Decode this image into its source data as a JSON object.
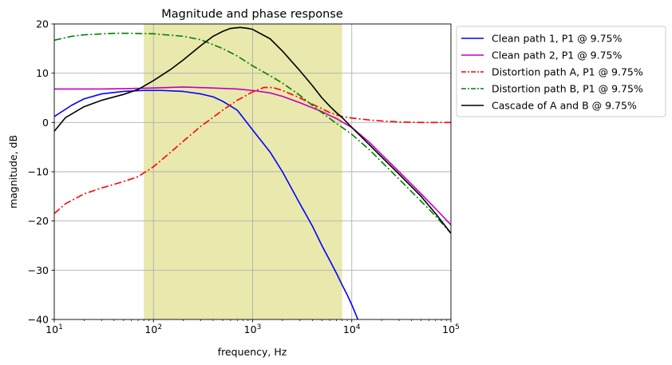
{
  "chart_data": {
    "type": "line",
    "title": "Magnitude and phase response",
    "xlabel": "frequency, Hz",
    "ylabel": "magnitude, dB",
    "xscale": "log",
    "xlim": [
      10,
      100000
    ],
    "ylim": [
      -40,
      20
    ],
    "grid": true,
    "legend_position": "outside-top-right",
    "x_ticks": [
      {
        "value": 10,
        "base": "10",
        "exp": "1"
      },
      {
        "value": 100,
        "base": "10",
        "exp": "2"
      },
      {
        "value": 1000,
        "base": "10",
        "exp": "3"
      },
      {
        "value": 10000,
        "base": "10",
        "exp": "4"
      },
      {
        "value": 100000,
        "base": "10",
        "exp": "5"
      }
    ],
    "y_ticks": [
      {
        "value": 20,
        "label": "20"
      },
      {
        "value": 10,
        "label": "10"
      },
      {
        "value": 0,
        "label": "0"
      },
      {
        "value": -10,
        "label": "−10"
      },
      {
        "value": -20,
        "label": "−20"
      },
      {
        "value": -30,
        "label": "−30"
      },
      {
        "value": -40,
        "label": "−40"
      }
    ],
    "shaded_band": {
      "x_start": 80,
      "x_end": 8000,
      "color": "#e9e8ad"
    },
    "series": [
      {
        "name": "Clean path 1, P1 @ 9.75%",
        "color": "#0000ff",
        "style": "solid",
        "points": [
          [
            10,
            1.2
          ],
          [
            15,
            3.5
          ],
          [
            20,
            4.8
          ],
          [
            30,
            5.8
          ],
          [
            50,
            6.3
          ],
          [
            80,
            6.5
          ],
          [
            120,
            6.5
          ],
          [
            200,
            6.3
          ],
          [
            300,
            5.8
          ],
          [
            400,
            5.2
          ],
          [
            500,
            4.3
          ],
          [
            700,
            2.5
          ],
          [
            1000,
            -1.5
          ],
          [
            1500,
            -6.0
          ],
          [
            2000,
            -10.0
          ],
          [
            3000,
            -16.5
          ],
          [
            4000,
            -21.0
          ],
          [
            5000,
            -25.0
          ],
          [
            6000,
            -28.0
          ],
          [
            7000,
            -30.6
          ],
          [
            8000,
            -33.0
          ],
          [
            9000,
            -35.0
          ],
          [
            10000,
            -37.0
          ],
          [
            11000,
            -39.0
          ],
          [
            11800,
            -40.5
          ]
        ]
      },
      {
        "name": "Clean path 2, P1 @ 9.75%",
        "color": "#bf00bf",
        "style": "solid",
        "points": [
          [
            10,
            6.8
          ],
          [
            30,
            6.8
          ],
          [
            60,
            6.9
          ],
          [
            100,
            7.0
          ],
          [
            200,
            7.2
          ],
          [
            400,
            7.0
          ],
          [
            700,
            6.8
          ],
          [
            1000,
            6.5
          ],
          [
            1500,
            6.0
          ],
          [
            2000,
            5.3
          ],
          [
            3000,
            4.0
          ],
          [
            4000,
            3.0
          ],
          [
            5000,
            2.2
          ],
          [
            6000,
            1.4
          ],
          [
            7000,
            0.8
          ],
          [
            8000,
            0.1
          ],
          [
            10000,
            -1.0
          ],
          [
            15000,
            -4.0
          ],
          [
            20000,
            -6.5
          ],
          [
            30000,
            -10.0
          ],
          [
            50000,
            -14.5
          ],
          [
            70000,
            -17.5
          ],
          [
            100000,
            -20.8
          ]
        ]
      },
      {
        "name": "Distortion path A, P1 @ 9.75%",
        "color": "#ff0000",
        "style": "dashdot",
        "points": [
          [
            10,
            -18.5
          ],
          [
            13,
            -16.5
          ],
          [
            20,
            -14.5
          ],
          [
            30,
            -13.3
          ],
          [
            50,
            -12.0
          ],
          [
            70,
            -11.0
          ],
          [
            100,
            -9.0
          ],
          [
            150,
            -6.0
          ],
          [
            200,
            -3.8
          ],
          [
            300,
            -0.8
          ],
          [
            500,
            2.5
          ],
          [
            700,
            4.5
          ],
          [
            1000,
            6.2
          ],
          [
            1300,
            7.1
          ],
          [
            1600,
            7.1
          ],
          [
            2000,
            6.5
          ],
          [
            3000,
            5.0
          ],
          [
            4000,
            3.7
          ],
          [
            5000,
            2.8
          ],
          [
            6000,
            2.0
          ],
          [
            8000,
            1.2
          ],
          [
            10000,
            0.9
          ],
          [
            15000,
            0.5
          ],
          [
            20000,
            0.3
          ],
          [
            30000,
            0.1
          ],
          [
            50000,
            0.0
          ],
          [
            100000,
            0.0
          ]
        ]
      },
      {
        "name": "Distortion path B, P1 @ 9.75%",
        "color": "#008000",
        "style": "dashdot",
        "points": [
          [
            10,
            16.7
          ],
          [
            15,
            17.5
          ],
          [
            20,
            17.8
          ],
          [
            40,
            18.1
          ],
          [
            60,
            18.1
          ],
          [
            100,
            18.0
          ],
          [
            200,
            17.5
          ],
          [
            300,
            16.8
          ],
          [
            500,
            15.0
          ],
          [
            700,
            13.5
          ],
          [
            1000,
            11.5
          ],
          [
            1500,
            9.5
          ],
          [
            2000,
            8.0
          ],
          [
            3000,
            5.5
          ],
          [
            4000,
            3.5
          ],
          [
            5000,
            2.0
          ],
          [
            6000,
            0.8
          ],
          [
            7000,
            -0.2
          ],
          [
            8000,
            -1.0
          ],
          [
            10000,
            -2.4
          ],
          [
            15000,
            -5.5
          ],
          [
            20000,
            -8.0
          ],
          [
            30000,
            -11.5
          ],
          [
            50000,
            -16.0
          ],
          [
            70000,
            -19.0
          ],
          [
            100000,
            -22.5
          ]
        ]
      },
      {
        "name": "Cascade of A and B @ 9.75%",
        "color": "#000000",
        "style": "solid",
        "points": [
          [
            10,
            -1.8
          ],
          [
            13,
            1.0
          ],
          [
            20,
            3.2
          ],
          [
            30,
            4.5
          ],
          [
            50,
            5.7
          ],
          [
            70,
            6.7
          ],
          [
            100,
            8.5
          ],
          [
            150,
            10.8
          ],
          [
            200,
            12.7
          ],
          [
            300,
            15.6
          ],
          [
            400,
            17.5
          ],
          [
            500,
            18.5
          ],
          [
            600,
            19.1
          ],
          [
            750,
            19.3
          ],
          [
            900,
            19.1
          ],
          [
            1000,
            18.9
          ],
          [
            1500,
            17.0
          ],
          [
            2000,
            14.5
          ],
          [
            3000,
            10.5
          ],
          [
            4000,
            7.5
          ],
          [
            5000,
            5.0
          ],
          [
            6000,
            3.3
          ],
          [
            7000,
            2.0
          ],
          [
            8000,
            1.0
          ],
          [
            10000,
            -1.0
          ],
          [
            15000,
            -4.5
          ],
          [
            20000,
            -7.0
          ],
          [
            30000,
            -10.5
          ],
          [
            50000,
            -15.0
          ],
          [
            70000,
            -18.5
          ],
          [
            100000,
            -22.5
          ]
        ]
      }
    ]
  }
}
